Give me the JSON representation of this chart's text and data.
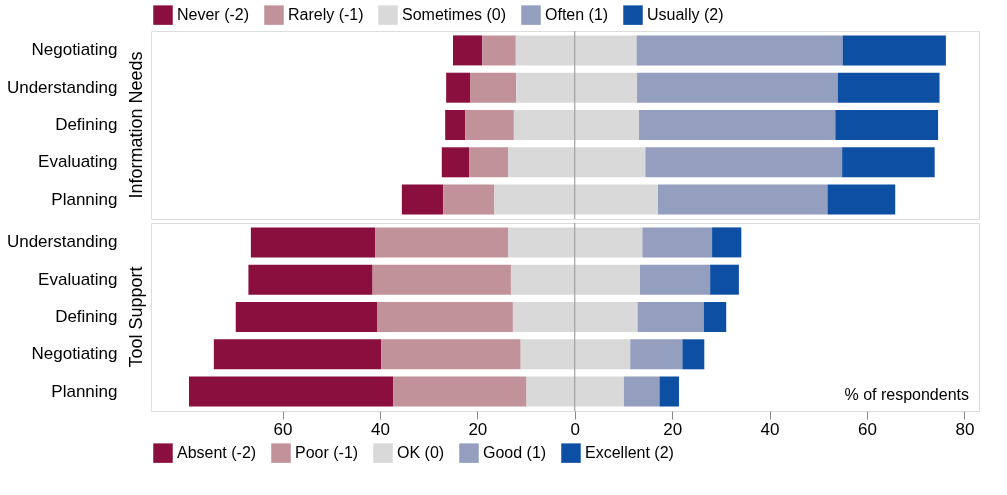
{
  "chart_data": [
    {
      "type": "bar",
      "title": "Information Needs",
      "orientation": "horizontal",
      "legend": "top",
      "tick_labels": "y",
      "grid": false,
      "xlim": [
        -87,
        83
      ],
      "categories": [
        "Negotiating",
        "Understanding",
        "Defining",
        "Evaluating",
        "Planning"
      ],
      "series": [
        {
          "name": "Never (-2)",
          "color": "#8a0f3e",
          "base": [
            -25.0,
            -26.4,
            -26.6,
            -27.3,
            -35.5
          ],
          "values": [
            6.0,
            4.9,
            4.1,
            5.6,
            8.5
          ]
        },
        {
          "name": "Rarely (-1)",
          "color": "#c2929a",
          "base": [
            -19.0,
            -21.5,
            -22.5,
            -21.7,
            -27.0
          ],
          "values": [
            6.9,
            9.5,
            10.0,
            8.0,
            10.5
          ]
        },
        {
          "name": "Sometimes (0)",
          "color": "#d9d9d9",
          "base": [
            -12.1,
            -12.0,
            -12.5,
            -13.7,
            -16.5
          ],
          "values": [
            24.8,
            24.8,
            25.7,
            28.2,
            33.6
          ]
        },
        {
          "name": "Often (1)",
          "color": "#949ebf",
          "base": [
            12.7,
            12.8,
            13.2,
            14.5,
            17.1
          ],
          "values": [
            42.3,
            41.2,
            40.3,
            40.4,
            34.8
          ]
        },
        {
          "name": "Usually (2)",
          "color": "#0d4fa3",
          "base": [
            55.0,
            54.0,
            53.5,
            54.9,
            51.9
          ],
          "values": [
            21.2,
            20.9,
            21.1,
            19.0,
            13.9
          ]
        }
      ],
      "ref_lines": [
        {
          "axis": "x",
          "value": 0,
          "color": "#a0a0a0"
        }
      ]
    },
    {
      "type": "bar",
      "title": "Tool Support",
      "orientation": "horizontal",
      "legend": "bottom",
      "grid": false,
      "xlim": [
        -87,
        83
      ],
      "xticks": [
        {
          "value": -60,
          "label": "60"
        },
        {
          "value": -40,
          "label": "40"
        },
        {
          "value": -20,
          "label": "20"
        },
        0,
        20,
        40,
        60,
        80
      ],
      "categories": [
        "Understanding",
        "Evaluating",
        "Defining",
        "Negotiating",
        "Planning"
      ],
      "series": [
        {
          "name": "Absent (-2)",
          "color": "#8a0f3e",
          "base": [
            -66.5,
            -67.0,
            -69.6,
            -74.1,
            -79.2
          ],
          "values": [
            25.5,
            25.5,
            29.1,
            34.4,
            41.9
          ]
        },
        {
          "name": "Poor (-1)",
          "color": "#c2929a",
          "base": [
            -41.0,
            -41.5,
            -40.5,
            -39.7,
            -37.3
          ],
          "values": [
            27.3,
            28.4,
            27.8,
            28.6,
            27.4
          ]
        },
        {
          "name": "OK (0)",
          "color": "#d9d9d9",
          "base": [
            -13.7,
            -13.1,
            -12.7,
            -11.1,
            -9.9
          ],
          "values": [
            27.6,
            26.5,
            25.6,
            22.5,
            20.0
          ]
        },
        {
          "name": "Good (1)",
          "color": "#949ebf",
          "base": [
            13.9,
            13.4,
            12.9,
            11.4,
            10.1
          ],
          "values": [
            14.3,
            14.4,
            13.6,
            10.7,
            7.3
          ]
        },
        {
          "name": "Excellent (2)",
          "color": "#0d4fa3",
          "base": [
            28.2,
            27.8,
            26.5,
            22.1,
            17.4
          ],
          "values": [
            6.0,
            5.9,
            4.6,
            4.5,
            4.0
          ]
        }
      ],
      "ref_lines": [
        {
          "axis": "x",
          "value": 0,
          "color": "#a0a0a0"
        }
      ],
      "annotations": [
        "% of respondents"
      ]
    }
  ]
}
